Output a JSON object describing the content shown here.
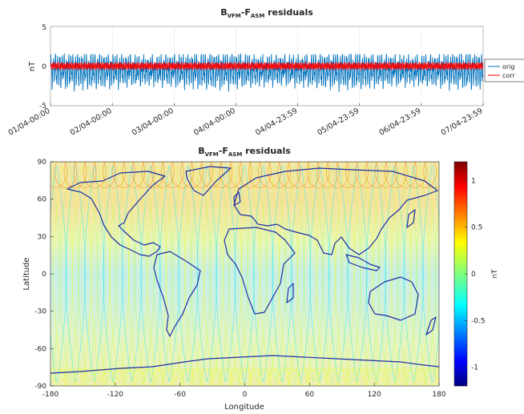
{
  "chart_data": [
    {
      "type": "line",
      "title": {
        "base_b": "B",
        "sub_b": "VFM",
        "sep": "-",
        "base_f": "F",
        "sub_f": "ASM",
        "rest": " residuals"
      },
      "ylabel": "nT",
      "ylim": [
        -5,
        5
      ],
      "yticks": [
        "5",
        "0",
        "-5"
      ],
      "xtick_labels": [
        "01/04-00:00",
        "02/04-00:00",
        "03/04-00:00",
        "04/04-00:00",
        "04/04-23:59",
        "05/04-23:59",
        "06/04-23:59",
        "07/04-23:59"
      ],
      "legend": {
        "position": "right",
        "entries": [
          "orig",
          "corr"
        ]
      },
      "grid": true,
      "series": [
        {
          "name": "orig",
          "color": "#0072bd",
          "amplitude_range": [
            -3.7,
            1.5
          ],
          "mean": -0.5
        },
        {
          "name": "corr",
          "color": "#ff0000",
          "amplitude_range": [
            -0.6,
            0.6
          ],
          "mean": 0.0
        }
      ]
    },
    {
      "type": "heatmap",
      "title": {
        "base_b": "B",
        "sub_b": "VFM",
        "sep": "-",
        "base_f": "F",
        "sub_f": "ASM",
        "rest": " residuals"
      },
      "xlabel": "Longitude",
      "ylabel": "Latitude",
      "xlim": [
        -180,
        180
      ],
      "ylim": [
        -90,
        90
      ],
      "xticks": [
        "-180",
        "-120",
        "-60",
        "0",
        "60",
        "120",
        "180"
      ],
      "yticks": [
        "90",
        "60",
        "30",
        "0",
        "-30",
        "-60",
        "-90"
      ],
      "colorbar": {
        "label": "nT",
        "range": [
          -1.2,
          1.2
        ],
        "ticks": [
          "1",
          "0.5",
          "0",
          "-0.5",
          "-1"
        ],
        "colormap": "jet"
      },
      "coastline_color": "#1c2ea8",
      "description_values": {
        "polar_band_residual": 0.5,
        "equatorial_residual": -0.3
      }
    }
  ]
}
